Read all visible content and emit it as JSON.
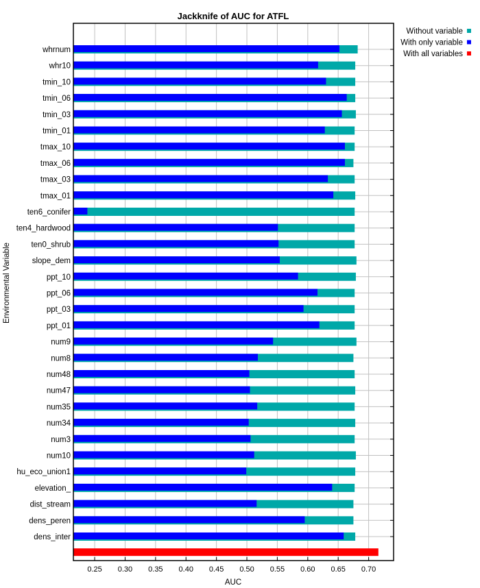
{
  "chart_data": {
    "type": "bar",
    "orientation": "horizontal",
    "title": "Jackknife of AUC for ATFL",
    "xlabel": "AUC",
    "ylabel": "Environmental Variable",
    "xlim": [
      0.215,
      0.741
    ],
    "xticks": [
      0.25,
      0.3,
      0.35,
      0.4,
      0.45,
      0.5,
      0.55,
      0.6,
      0.65,
      0.7
    ],
    "xtick_labels": [
      "0.25",
      "0.30",
      "0.35",
      "0.40",
      "0.45",
      "0.50",
      "0.55",
      "0.60",
      "0.65",
      "0.70"
    ],
    "grid": true,
    "legend_position": "top-right",
    "categories": [
      "whrnum",
      "whr10",
      "tmin_10",
      "tmin_06",
      "tmin_03",
      "tmin_01",
      "tmax_10",
      "tmax_06",
      "tmax_03",
      "tmax_01",
      "ten6_conifer",
      "ten4_hardwood",
      "ten0_shrub",
      "slope_dem",
      "ppt_10",
      "ppt_06",
      "ppt_03",
      "ppt_01",
      "num9",
      "num8",
      "num48",
      "num47",
      "num35",
      "num34",
      "num3",
      "num10",
      "hu_eco_union1",
      "elevation_",
      "dist_stream",
      "dens_peren",
      "dens_inter"
    ],
    "series": [
      {
        "name": "Without variable",
        "color": "#00a8a8",
        "values": [
          0.682,
          0.678,
          0.678,
          0.678,
          0.679,
          0.677,
          0.677,
          0.675,
          0.677,
          0.678,
          0.677,
          0.677,
          0.677,
          0.68,
          0.679,
          0.677,
          0.677,
          0.677,
          0.68,
          0.675,
          0.677,
          0.678,
          0.677,
          0.678,
          0.677,
          0.679,
          0.678,
          0.677,
          0.675,
          0.675,
          0.678
        ]
      },
      {
        "name": "With only variable",
        "color": "#0000ff",
        "values": [
          0.652,
          0.617,
          0.63,
          0.664,
          0.656,
          0.628,
          0.661,
          0.661,
          0.633,
          0.642,
          0.238,
          0.551,
          0.552,
          0.554,
          0.584,
          0.616,
          0.593,
          0.619,
          0.543,
          0.518,
          0.504,
          0.505,
          0.517,
          0.503,
          0.506,
          0.512,
          0.499,
          0.64,
          0.516,
          0.595,
          0.659
        ]
      },
      {
        "name": "With all variables",
        "color": "#ff0000",
        "values": [
          0.716
        ]
      }
    ],
    "legend": [
      {
        "label": "Without variable",
        "color": "#00a8a8"
      },
      {
        "label": "With only variable",
        "color": "#0000ff"
      },
      {
        "label": "With all variables",
        "color": "#ff0000"
      }
    ]
  }
}
